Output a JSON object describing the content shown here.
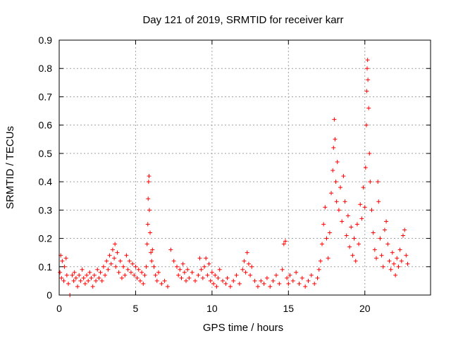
{
  "chart_data": {
    "type": "scatter",
    "title": "Day 121 of 2019, SRMTID for receiver karr",
    "xlabel": "GPS time / hours",
    "ylabel": "SRMTID / TECUs",
    "xlim": [
      0,
      24.3
    ],
    "ylim": [
      0,
      0.9
    ],
    "xticks": [
      0,
      5,
      10,
      15,
      20
    ],
    "xtick_labels": [
      "0",
      "5",
      "10",
      "15",
      "20"
    ],
    "yticks": [
      0,
      0.1,
      0.2,
      0.3,
      0.4,
      0.5,
      0.6,
      0.7,
      0.8,
      0.9
    ],
    "ytick_labels": [
      "0",
      "0.1",
      "0.2",
      "0.3",
      "0.4",
      "0.5",
      "0.6",
      "0.7",
      "0.8",
      "0.9"
    ],
    "grid": true,
    "marker": "+",
    "series": [
      {
        "name": "SRMTID",
        "color": "#ff0000",
        "points": [
          [
            0.05,
            0.08
          ],
          [
            0.1,
            0.14
          ],
          [
            0.15,
            0.06
          ],
          [
            0.2,
            0.12
          ],
          [
            0.3,
            0.05
          ],
          [
            0.35,
            0.1
          ],
          [
            0.45,
            0.13
          ],
          [
            0.5,
            0.07
          ],
          [
            0.6,
            0.04
          ],
          [
            0.7,
            0.0
          ],
          [
            0.85,
            0.07
          ],
          [
            0.95,
            0.05
          ],
          [
            1.0,
            0.08
          ],
          [
            1.1,
            0.06
          ],
          [
            1.2,
            0.03
          ],
          [
            1.3,
            0.07
          ],
          [
            1.4,
            0.05
          ],
          [
            1.5,
            0.09
          ],
          [
            1.6,
            0.06
          ],
          [
            1.7,
            0.04
          ],
          [
            1.8,
            0.07
          ],
          [
            1.9,
            0.05
          ],
          [
            2.0,
            0.08
          ],
          [
            2.1,
            0.06
          ],
          [
            2.2,
            0.03
          ],
          [
            2.3,
            0.07
          ],
          [
            2.4,
            0.05
          ],
          [
            2.5,
            0.09
          ],
          [
            2.6,
            0.06
          ],
          [
            2.7,
            0.08
          ],
          [
            2.8,
            0.05
          ],
          [
            2.9,
            0.1
          ],
          [
            3.0,
            0.07
          ],
          [
            3.1,
            0.12
          ],
          [
            3.2,
            0.09
          ],
          [
            3.3,
            0.14
          ],
          [
            3.4,
            0.11
          ],
          [
            3.5,
            0.16
          ],
          [
            3.6,
            0.13
          ],
          [
            3.65,
            0.18
          ],
          [
            3.7,
            0.1
          ],
          [
            3.8,
            0.15
          ],
          [
            3.9,
            0.08
          ],
          [
            4.0,
            0.12
          ],
          [
            4.1,
            0.06
          ],
          [
            4.2,
            0.1
          ],
          [
            4.3,
            0.07
          ],
          [
            4.4,
            0.14
          ],
          [
            4.5,
            0.09
          ],
          [
            4.6,
            0.12
          ],
          [
            4.7,
            0.08
          ],
          [
            4.8,
            0.11
          ],
          [
            4.9,
            0.07
          ],
          [
            5.0,
            0.1
          ],
          [
            5.1,
            0.06
          ],
          [
            5.2,
            0.09
          ],
          [
            5.3,
            0.05
          ],
          [
            5.4,
            0.08
          ],
          [
            5.5,
            0.04
          ],
          [
            5.6,
            0.07
          ],
          [
            5.7,
            0.1
          ],
          [
            5.75,
            0.18
          ],
          [
            5.8,
            0.25
          ],
          [
            5.82,
            0.34
          ],
          [
            5.85,
            0.4
          ],
          [
            5.88,
            0.42
          ],
          [
            5.9,
            0.3
          ],
          [
            5.95,
            0.22
          ],
          [
            6.0,
            0.15
          ],
          [
            6.05,
            0.12
          ],
          [
            6.1,
            0.16
          ],
          [
            6.2,
            0.1
          ],
          [
            6.3,
            0.07
          ],
          [
            6.4,
            0.05
          ],
          [
            6.5,
            0.08
          ],
          [
            6.7,
            0.04
          ],
          [
            6.9,
            0.05
          ],
          [
            7.1,
            0.03
          ],
          [
            7.3,
            0.16
          ],
          [
            7.5,
            0.12
          ],
          [
            7.7,
            0.1
          ],
          [
            7.8,
            0.07
          ],
          [
            7.9,
            0.09
          ],
          [
            8.0,
            0.06
          ],
          [
            8.1,
            0.11
          ],
          [
            8.2,
            0.08
          ],
          [
            8.3,
            0.05
          ],
          [
            8.4,
            0.09
          ],
          [
            8.5,
            0.06
          ],
          [
            8.7,
            0.08
          ],
          [
            8.9,
            0.05
          ],
          [
            9.1,
            0.07
          ],
          [
            9.2,
            0.13
          ],
          [
            9.3,
            0.09
          ],
          [
            9.4,
            0.06
          ],
          [
            9.5,
            0.1
          ],
          [
            9.6,
            0.13
          ],
          [
            9.7,
            0.07
          ],
          [
            9.8,
            0.11
          ],
          [
            9.9,
            0.05
          ],
          [
            10.0,
            0.08
          ],
          [
            10.1,
            0.04
          ],
          [
            10.2,
            0.07
          ],
          [
            10.3,
            0.03
          ],
          [
            10.4,
            0.06
          ],
          [
            10.5,
            0.09
          ],
          [
            10.7,
            0.05
          ],
          [
            10.9,
            0.04
          ],
          [
            11.0,
            0.06
          ],
          [
            11.2,
            0.03
          ],
          [
            11.4,
            0.05
          ],
          [
            11.6,
            0.07
          ],
          [
            11.8,
            0.04
          ],
          [
            12.0,
            0.09
          ],
          [
            12.1,
            0.12
          ],
          [
            12.2,
            0.08
          ],
          [
            12.3,
            0.15
          ],
          [
            12.4,
            0.11
          ],
          [
            12.5,
            0.07
          ],
          [
            12.6,
            0.1
          ],
          [
            12.8,
            0.05
          ],
          [
            13.0,
            0.03
          ],
          [
            13.2,
            0.05
          ],
          [
            13.4,
            0.04
          ],
          [
            13.6,
            0.06
          ],
          [
            13.8,
            0.03
          ],
          [
            14.0,
            0.05
          ],
          [
            14.2,
            0.07
          ],
          [
            14.4,
            0.04
          ],
          [
            14.6,
            0.09
          ],
          [
            14.7,
            0.18
          ],
          [
            14.8,
            0.19
          ],
          [
            14.9,
            0.06
          ],
          [
            15.0,
            0.04
          ],
          [
            15.1,
            0.07
          ],
          [
            15.3,
            0.05
          ],
          [
            15.5,
            0.08
          ],
          [
            15.7,
            0.04
          ],
          [
            15.9,
            0.06
          ],
          [
            16.1,
            0.03
          ],
          [
            16.3,
            0.05
          ],
          [
            16.5,
            0.07
          ],
          [
            16.7,
            0.04
          ],
          [
            16.9,
            0.06
          ],
          [
            17.0,
            0.09
          ],
          [
            17.1,
            0.12
          ],
          [
            17.2,
            0.18
          ],
          [
            17.3,
            0.25
          ],
          [
            17.4,
            0.31
          ],
          [
            17.5,
            0.2
          ],
          [
            17.6,
            0.13
          ],
          [
            17.7,
            0.22
          ],
          [
            17.8,
            0.36
          ],
          [
            17.9,
            0.44
          ],
          [
            17.95,
            0.52
          ],
          [
            18.0,
            0.62
          ],
          [
            18.05,
            0.55
          ],
          [
            18.1,
            0.4
          ],
          [
            18.15,
            0.33
          ],
          [
            18.2,
            0.47
          ],
          [
            18.3,
            0.3
          ],
          [
            18.4,
            0.38
          ],
          [
            18.5,
            0.26
          ],
          [
            18.6,
            0.42
          ],
          [
            18.7,
            0.33
          ],
          [
            18.8,
            0.21
          ],
          [
            18.9,
            0.28
          ],
          [
            19.0,
            0.17
          ],
          [
            19.1,
            0.24
          ],
          [
            19.2,
            0.14
          ],
          [
            19.3,
            0.2
          ],
          [
            19.4,
            0.12
          ],
          [
            19.5,
            0.25
          ],
          [
            19.6,
            0.18
          ],
          [
            19.7,
            0.32
          ],
          [
            19.8,
            0.27
          ],
          [
            19.9,
            0.38
          ],
          [
            20.0,
            0.31
          ],
          [
            20.05,
            0.45
          ],
          [
            20.1,
            0.6
          ],
          [
            20.12,
            0.72
          ],
          [
            20.15,
            0.8
          ],
          [
            20.18,
            0.83
          ],
          [
            20.2,
            0.76
          ],
          [
            20.25,
            0.66
          ],
          [
            20.3,
            0.5
          ],
          [
            20.35,
            0.4
          ],
          [
            20.45,
            0.3
          ],
          [
            20.55,
            0.22
          ],
          [
            20.65,
            0.16
          ],
          [
            20.75,
            0.13
          ],
          [
            20.85,
            0.4
          ],
          [
            20.9,
            0.33
          ],
          [
            21.0,
            0.2
          ],
          [
            21.1,
            0.14
          ],
          [
            21.2,
            0.1
          ],
          [
            21.3,
            0.23
          ],
          [
            21.4,
            0.26
          ],
          [
            21.5,
            0.18
          ],
          [
            21.6,
            0.12
          ],
          [
            21.7,
            0.09
          ],
          [
            21.8,
            0.15
          ],
          [
            21.9,
            0.11
          ],
          [
            22.0,
            0.07
          ],
          [
            22.1,
            0.13
          ],
          [
            22.2,
            0.1
          ],
          [
            22.3,
            0.16
          ],
          [
            22.4,
            0.12
          ],
          [
            22.5,
            0.21
          ],
          [
            22.6,
            0.23
          ],
          [
            22.7,
            0.14
          ],
          [
            22.8,
            0.11
          ]
        ]
      }
    ]
  }
}
